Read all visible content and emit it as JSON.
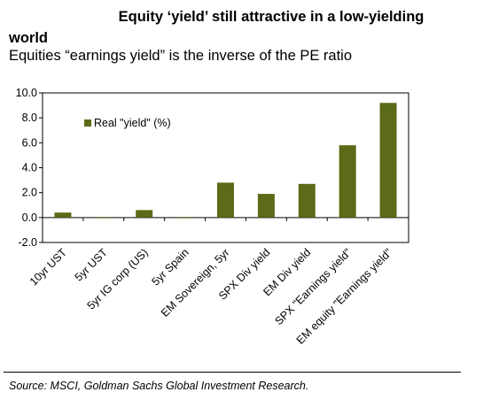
{
  "header": {
    "title_line1": "Equity ‘yield’ still attractive in a low-yielding",
    "title_line2": "world",
    "subtitle": "Equities “earnings yield” is the inverse of the PE ratio"
  },
  "footer": {
    "source": "Source: MSCI, Goldman Sachs Global Investment Research."
  },
  "chart_data": {
    "type": "bar",
    "categories": [
      "10yr UST",
      "5yr UST",
      "5yr IG corp (US)",
      "5yr Spain",
      "EM Sovereign, 5yr",
      "SPX Div yield",
      "EM Div yield",
      "SPX \"Earnings yield\"",
      "EM equity \"Earnings yield\""
    ],
    "series": [
      {
        "name": "Real \"yield\" (%)",
        "values": [
          0.4,
          0.0,
          0.6,
          0.0,
          2.8,
          1.9,
          2.7,
          5.8,
          9.2
        ],
        "color": "#5b6b17"
      }
    ],
    "yticks": [
      "-2.0",
      "0.0",
      "2.0",
      "4.0",
      "6.0",
      "8.0",
      "10.0"
    ],
    "ylim": [
      -2,
      10
    ],
    "legend_position": "top-left",
    "grid": false
  }
}
